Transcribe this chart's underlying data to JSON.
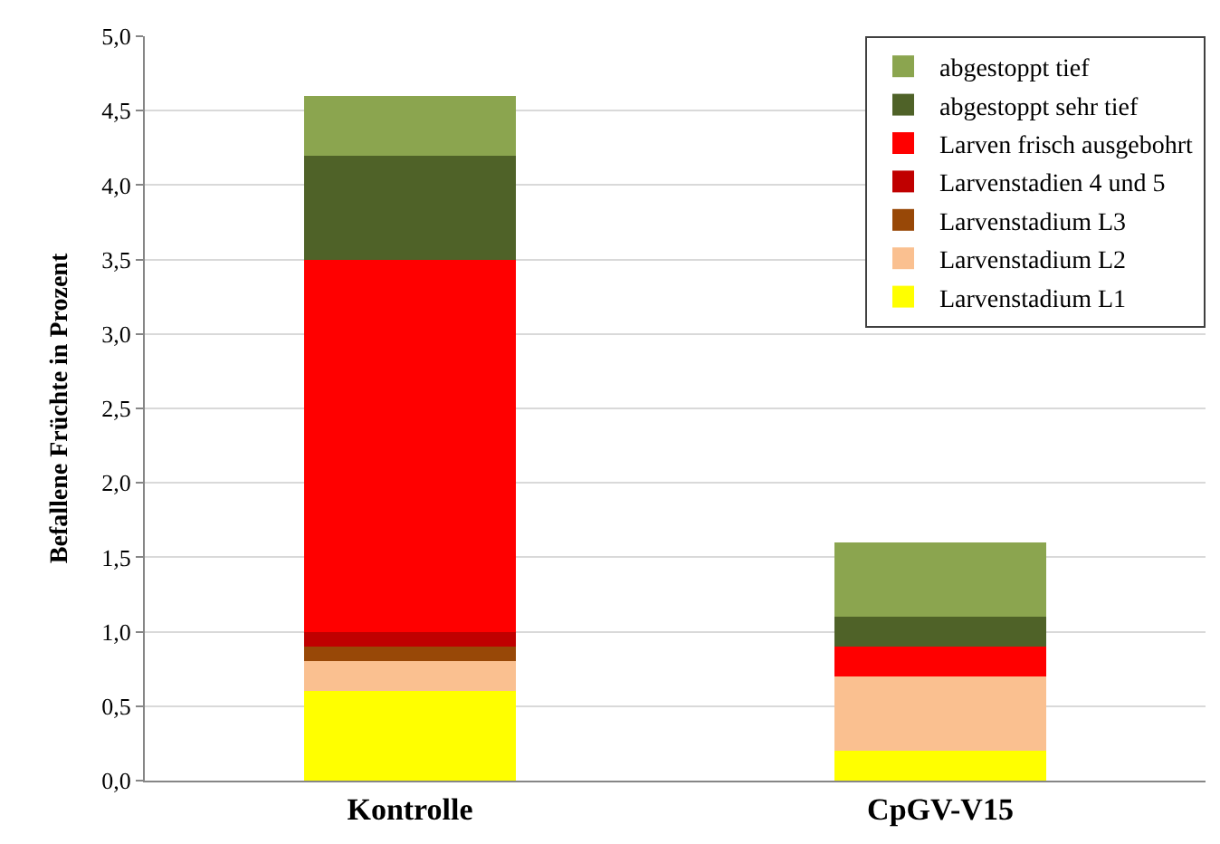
{
  "chart_data": {
    "type": "bar",
    "stacked": true,
    "ylabel": "Befallene Früchte in Prozent",
    "categories": [
      "Kontrolle",
      "CpGV-V15"
    ],
    "series": [
      {
        "name": "Larvenstadium L1",
        "color": "#ffff00",
        "values": [
          0.6,
          0.2
        ]
      },
      {
        "name": "Larvenstadium L2",
        "color": "#fac090",
        "values": [
          0.2,
          0.5
        ]
      },
      {
        "name": "Larvenstadium L3",
        "color": "#984807",
        "values": [
          0.1,
          0
        ]
      },
      {
        "name": "Larvenstadien 4 und 5",
        "color": "#c00000",
        "values": [
          0.1,
          0
        ]
      },
      {
        "name": "Larven frisch ausgebohrt",
        "color": "#ff0000",
        "values": [
          2.5,
          0.2
        ]
      },
      {
        "name": "abgestoppt sehr tief",
        "color": "#4f6228",
        "values": [
          0.7,
          0.2
        ]
      },
      {
        "name": "abgestoppt tief",
        "color": "#8ba54f",
        "values": [
          0.4,
          0.5
        ]
      }
    ],
    "ylim": [
      0,
      5
    ],
    "yticks": [
      {
        "value": 0,
        "label": "0,0"
      },
      {
        "value": 0.5,
        "label": "0,5"
      },
      {
        "value": 1,
        "label": "1,0"
      },
      {
        "value": 1.5,
        "label": "1,5"
      },
      {
        "value": 2,
        "label": "2,0"
      },
      {
        "value": 2.5,
        "label": "2,5"
      },
      {
        "value": 3,
        "label": "3,0"
      },
      {
        "value": 3.5,
        "label": "3,5"
      },
      {
        "value": 4,
        "label": "4,0"
      },
      {
        "value": 4.5,
        "label": "4,5"
      },
      {
        "value": 5,
        "label": "5,0"
      }
    ],
    "grid": "y",
    "legend": "top right"
  }
}
